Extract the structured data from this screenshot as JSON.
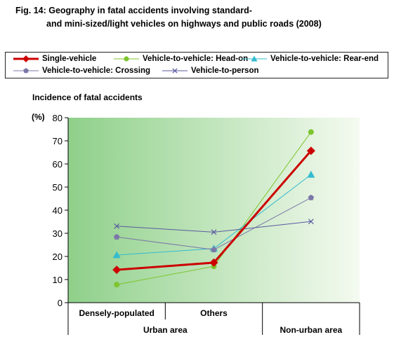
{
  "title": {
    "line1": "Fig. 14: Geography in fatal accidents involving standard-",
    "line2": "and mini-sized/light vehicles on highways and public roads (2008)"
  },
  "chart_data": {
    "type": "line",
    "title": "Fig. 14: Geography in fatal accidents involving standard- and mini-sized/light vehicles on highways and public roads (2008)",
    "ylabel": "Incidence of fatal accidents",
    "yunit": "(%)",
    "ylim": [
      0,
      80
    ],
    "yticks": [
      0,
      10,
      20,
      30,
      40,
      50,
      60,
      70,
      80
    ],
    "categories": [
      "Densely-populated",
      "Others",
      "Non-urban area"
    ],
    "category_groups": [
      {
        "label": "Urban area",
        "span": [
          0,
          1
        ]
      },
      {
        "label": "Non-urban area",
        "span": [
          2,
          2
        ]
      }
    ],
    "grid": false,
    "legend_position": "top",
    "series": [
      {
        "name": "Single-vehicle",
        "values": [
          14.2,
          17.3,
          65.7
        ],
        "color": "#cc0000",
        "marker": "diamond",
        "width": 3
      },
      {
        "name": "Vehicle-to-vehicle: Head-on",
        "values": [
          7.8,
          15.7,
          73.8
        ],
        "color": "#7dc52e",
        "marker": "circle",
        "width": 1
      },
      {
        "name": "Vehicle-to-vehicle: Rear-end",
        "values": [
          20.6,
          23.4,
          55.4
        ],
        "color": "#33bbd0",
        "marker": "triangle",
        "width": 1
      },
      {
        "name": "Vehicle-to-vehicle: Crossing",
        "values": [
          28.4,
          22.9,
          45.4
        ],
        "color": "#7b78a8",
        "marker": "pentagon",
        "width": 1
      },
      {
        "name": "Vehicle-to-person",
        "values": [
          33.1,
          30.5,
          35.1
        ],
        "color": "#5a5aa0",
        "marker": "x",
        "width": 1
      }
    ]
  }
}
